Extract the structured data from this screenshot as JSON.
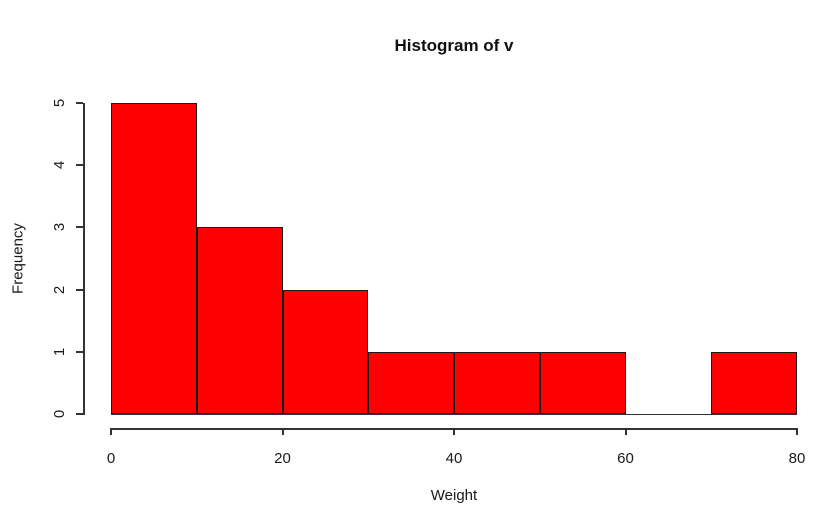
{
  "title": "Histogram of v",
  "chart_data": {
    "type": "bar",
    "subtype": "histogram",
    "title": "Histogram of v",
    "xlabel": "Weight",
    "ylabel": "Frequency",
    "bin_edges": [
      0,
      10,
      20,
      30,
      40,
      50,
      60,
      70,
      80
    ],
    "values": [
      5,
      3,
      2,
      1,
      1,
      1,
      0,
      1
    ],
    "x_ticks": [
      0,
      20,
      40,
      60,
      80
    ],
    "y_ticks": [
      0,
      1,
      2,
      3,
      4,
      5
    ],
    "xlim": [
      0,
      80
    ],
    "ylim": [
      0,
      5
    ],
    "bar_fill_color": "#ff0000",
    "bar_border_color": "#1a1a1a",
    "axis_color": "#333333",
    "background_color": "#ffffff",
    "grid": false,
    "legend_position": "none"
  }
}
